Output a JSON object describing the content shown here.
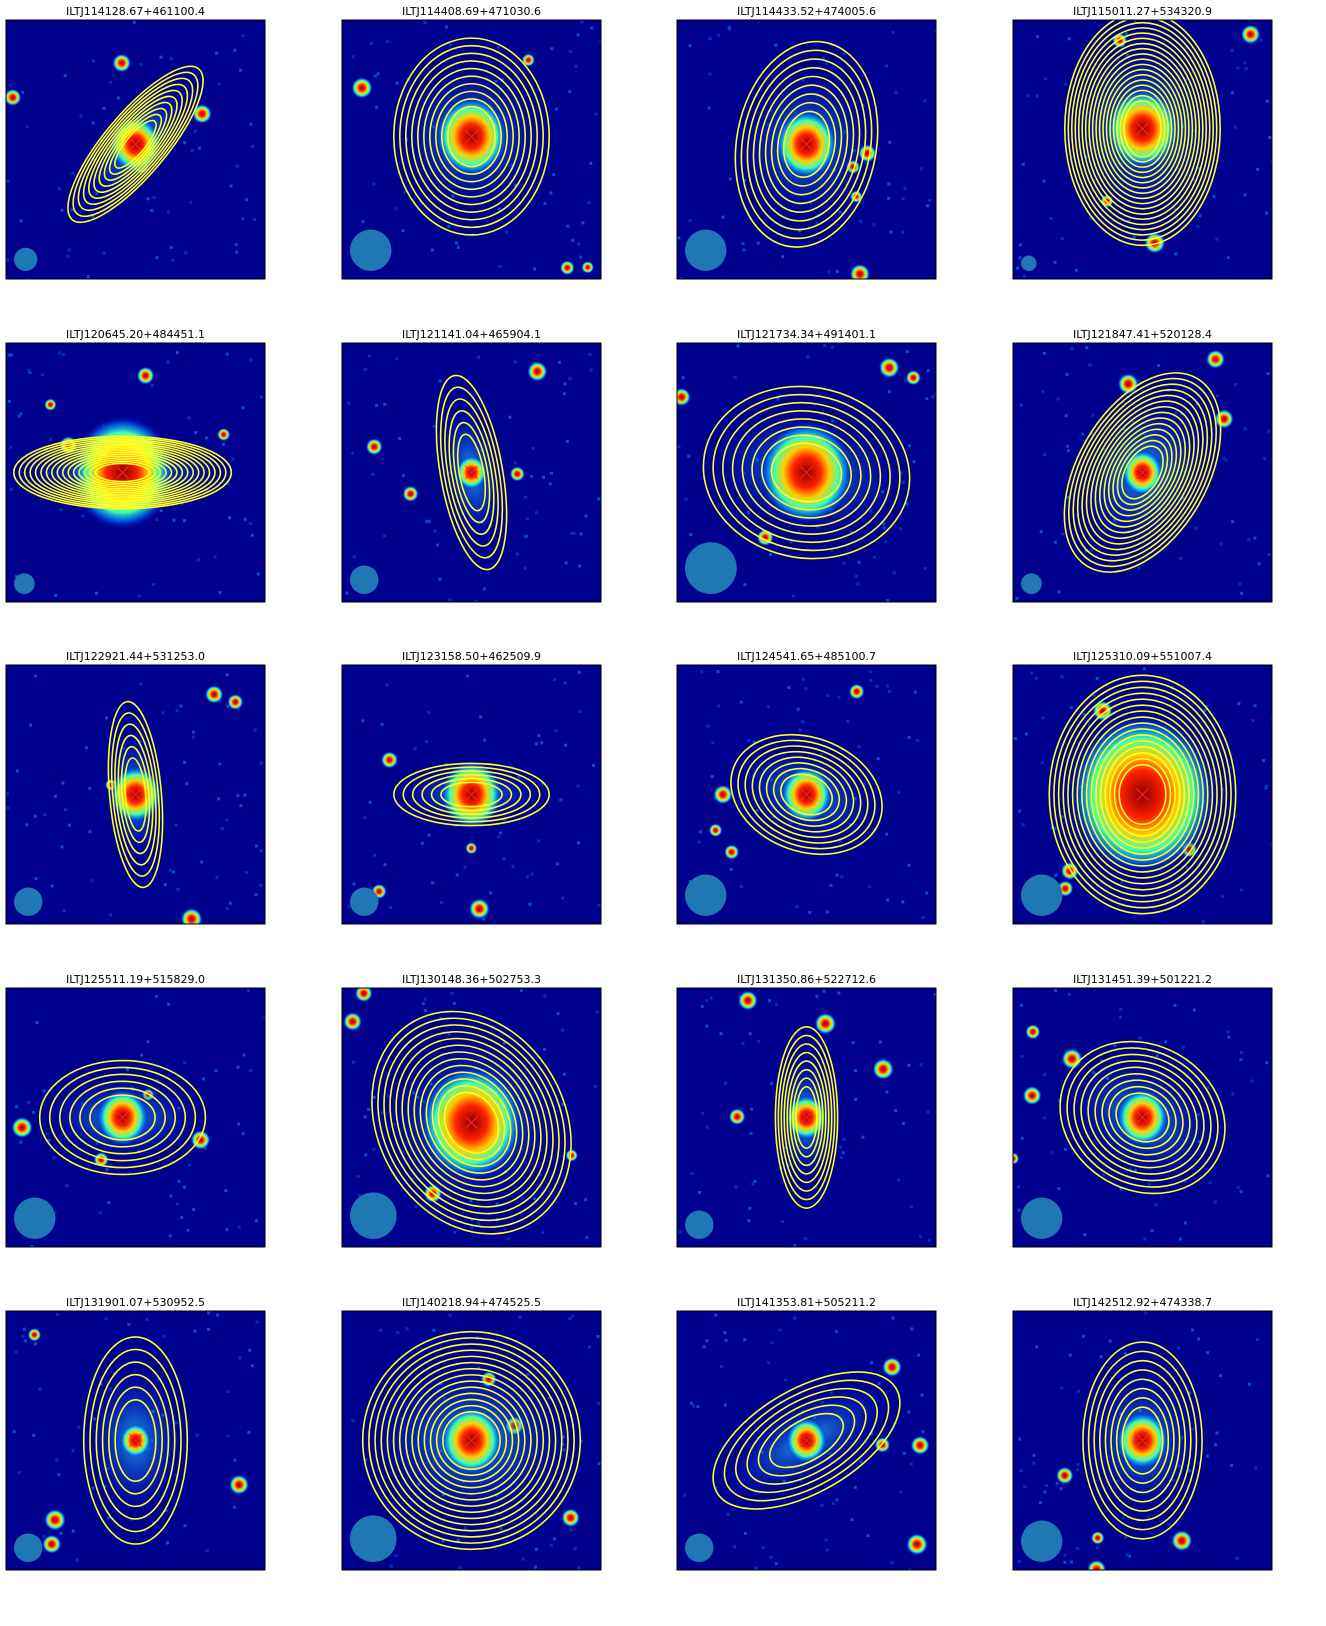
{
  "panels": [
    {
      "title": "ILTJ114128.67+461100.4"
    },
    {
      "title": "ILTJ114408.69+471030.6"
    },
    {
      "title": "ILTJ114433.52+474005.6"
    },
    {
      "title": "ILTJ115011.27+534320.9"
    },
    {
      "title": "ILTJ120645.20+484451.1"
    },
    {
      "title": "ILTJ121141.04+465904.1"
    },
    {
      "title": "ILTJ121734.34+491401.1"
    },
    {
      "title": "ILTJ121847.41+520128.4"
    },
    {
      "title": "ILTJ122921.44+531253.0"
    },
    {
      "title": "ILTJ123158.50+462509.9"
    },
    {
      "title": "ILTJ124541.65+485100.7"
    },
    {
      "title": "ILTJ125310.09+551007.4"
    },
    {
      "title": "ILTJ125511.19+515829.0"
    },
    {
      "title": "ILTJ130148.36+502753.3"
    },
    {
      "title": "ILTJ131350.86+522712.6"
    },
    {
      "title": "ILTJ131451.39+501221.2"
    },
    {
      "title": "ILTJ131901.07+530952.5"
    },
    {
      "title": "ILTJ140218.94+474525.5"
    },
    {
      "title": "ILTJ141353.81+505211.2"
    },
    {
      "title": "ILTJ142512.92+474338.7"
    }
  ]
}
